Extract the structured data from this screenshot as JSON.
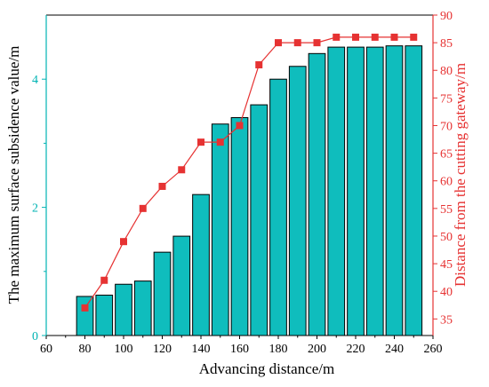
{
  "chart_data": {
    "type": "bar",
    "xlabel": "Advancing distance/m",
    "ylabel": "The maximum surface subsidence value/m",
    "y2label": "Distance from the cutting gateway/m",
    "xlim": [
      60,
      260
    ],
    "ylim": [
      0,
      5
    ],
    "y2lim": [
      32,
      90
    ],
    "x_ticks": [
      60,
      80,
      100,
      120,
      140,
      160,
      180,
      200,
      220,
      240,
      260
    ],
    "y_ticks": [
      0,
      2,
      4
    ],
    "y2_ticks": [
      35,
      40,
      45,
      50,
      55,
      60,
      65,
      70,
      75,
      80,
      85,
      90
    ],
    "grid": false,
    "x": [
      80,
      90,
      100,
      110,
      120,
      130,
      140,
      150,
      160,
      170,
      180,
      190,
      200,
      210,
      220,
      230,
      240,
      250
    ],
    "series": [
      {
        "type": "bar",
        "axis": "left",
        "color": "#0fbdbd",
        "values": [
          0.61,
          0.63,
          0.8,
          0.85,
          1.3,
          1.55,
          2.2,
          3.3,
          3.4,
          3.6,
          4.0,
          4.2,
          4.4,
          4.5,
          4.5,
          4.5,
          4.52,
          4.52
        ]
      },
      {
        "type": "line",
        "axis": "right",
        "color": "#e63232",
        "marker": "square",
        "values": [
          37,
          42,
          49,
          55,
          59,
          62,
          67,
          67,
          70,
          81,
          85,
          85,
          85,
          86,
          86,
          86,
          86,
          86
        ]
      }
    ],
    "colors": {
      "axis": "#000000",
      "left_axis": "#00b3b3",
      "right_axis": "#e63232"
    }
  }
}
